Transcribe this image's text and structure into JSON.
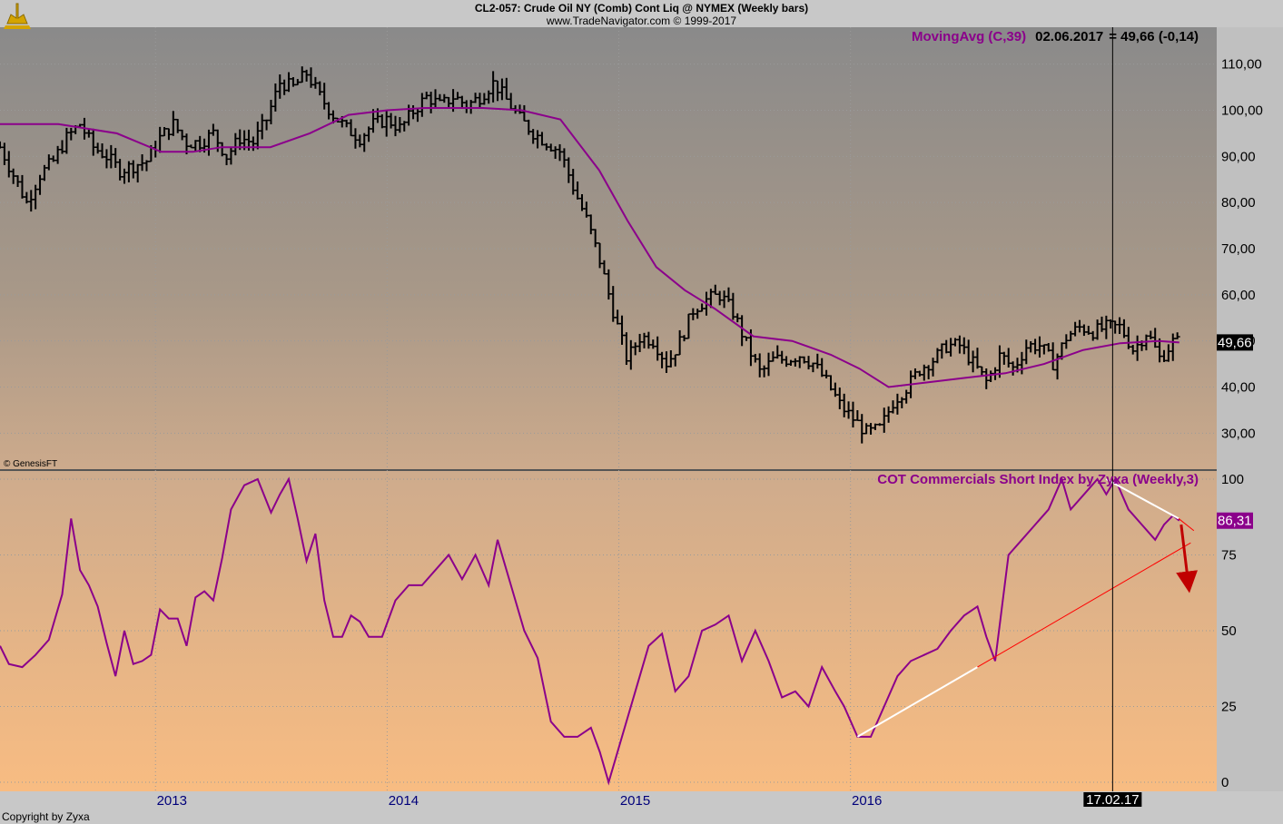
{
  "header": {
    "title": "CL2-057:  Crude Oil NY (Comb) Cont Liq @ NYMEX  (Weekly bars)",
    "subtitle": "www.TradeNavigator.com © 1999-2017"
  },
  "footer": {
    "copyright": "Copyright by Zyxa"
  },
  "colors": {
    "price_bars": "#000000",
    "moving_avg": "#8b008b",
    "cot": "#8b008b",
    "trend_white": "#ffffff",
    "trend_red": "#ff0000",
    "arrow": "#c00000"
  },
  "chart_data": [
    {
      "type": "ohlc",
      "panel": "price",
      "legend": {
        "name": "MovingAvg (C,39)",
        "date": "02.06.2017",
        "value_text": "= 49,66 (-0,14)"
      },
      "watermark": "© GenesisFT",
      "last_value_label": "49,66",
      "ylim": [
        22,
        118
      ],
      "y_ticks": [
        "110,00",
        "100,00",
        "90,00",
        "80,00",
        "70,00",
        "60,00",
        "50,00",
        "40,00",
        "30,00"
      ],
      "y_tick_values": [
        110,
        100,
        90,
        80,
        70,
        60,
        50,
        40,
        30
      ],
      "x_range": [
        "2012-05-01",
        "2017-07-31"
      ],
      "x_ticks": [
        {
          "date": "2013-01-01",
          "label": "2013"
        },
        {
          "date": "2014-01-01",
          "label": "2014"
        },
        {
          "date": "2015-01-01",
          "label": "2015"
        },
        {
          "date": "2016-01-01",
          "label": "2016"
        }
      ],
      "cursor": {
        "date": "2017-02-17",
        "label": "17.02.17"
      },
      "price_close": [
        [
          "2012-05-01",
          92
        ],
        [
          "2012-05-22",
          86
        ],
        [
          "2012-06-12",
          80
        ],
        [
          "2012-07-03",
          86
        ],
        [
          "2012-07-24",
          89
        ],
        [
          "2012-08-14",
          94
        ],
        [
          "2012-09-04",
          97
        ],
        [
          "2012-09-25",
          92
        ],
        [
          "2012-10-16",
          90
        ],
        [
          "2012-11-06",
          87
        ],
        [
          "2012-11-27",
          88
        ],
        [
          "2012-12-18",
          89
        ],
        [
          "2013-01-08",
          94
        ],
        [
          "2013-01-29",
          97
        ],
        [
          "2013-02-19",
          93
        ],
        [
          "2013-03-12",
          93
        ],
        [
          "2013-04-02",
          95
        ],
        [
          "2013-04-23",
          90
        ],
        [
          "2013-05-14",
          94
        ],
        [
          "2013-06-04",
          93
        ],
        [
          "2013-06-25",
          98
        ],
        [
          "2013-07-16",
          106
        ],
        [
          "2013-08-06",
          105
        ],
        [
          "2013-08-27",
          108
        ],
        [
          "2013-09-17",
          103
        ],
        [
          "2013-10-08",
          99
        ],
        [
          "2013-10-29",
          96
        ],
        [
          "2013-11-19",
          94
        ],
        [
          "2013-12-10",
          97
        ],
        [
          "2014-01-01",
          98
        ],
        [
          "2014-01-22",
          96
        ],
        [
          "2014-02-12",
          100
        ],
        [
          "2014-03-05",
          103
        ],
        [
          "2014-03-26",
          101
        ],
        [
          "2014-04-16",
          103
        ],
        [
          "2014-05-07",
          101
        ],
        [
          "2014-05-28",
          103
        ],
        [
          "2014-06-18",
          106
        ],
        [
          "2014-07-09",
          102
        ],
        [
          "2014-07-30",
          98
        ],
        [
          "2014-08-20",
          95
        ],
        [
          "2014-09-10",
          93
        ],
        [
          "2014-10-01",
          91
        ],
        [
          "2014-10-22",
          83
        ],
        [
          "2014-11-12",
          76
        ],
        [
          "2014-12-03",
          67
        ],
        [
          "2014-12-24",
          56
        ],
        [
          "2015-01-14",
          46
        ],
        [
          "2015-02-04",
          51
        ],
        [
          "2015-02-25",
          50
        ],
        [
          "2015-03-18",
          45
        ],
        [
          "2015-04-08",
          50
        ],
        [
          "2015-04-29",
          57
        ],
        [
          "2015-05-20",
          59
        ],
        [
          "2015-06-10",
          60
        ],
        [
          "2015-07-01",
          56
        ],
        [
          "2015-07-22",
          49
        ],
        [
          "2015-08-12",
          43
        ],
        [
          "2015-09-02",
          46
        ],
        [
          "2015-09-23",
          46
        ],
        [
          "2015-10-14",
          47
        ],
        [
          "2015-11-04",
          45
        ],
        [
          "2015-11-25",
          41
        ],
        [
          "2015-12-16",
          36
        ],
        [
          "2016-01-06",
          33
        ],
        [
          "2016-01-27",
          30
        ],
        [
          "2016-02-17",
          31
        ],
        [
          "2016-03-09",
          37
        ],
        [
          "2016-03-30",
          40
        ],
        [
          "2016-04-20",
          44
        ],
        [
          "2016-05-11",
          46
        ],
        [
          "2016-06-01",
          49
        ],
        [
          "2016-06-22",
          49
        ],
        [
          "2016-07-13",
          45
        ],
        [
          "2016-08-03",
          41
        ],
        [
          "2016-08-24",
          47
        ],
        [
          "2016-09-14",
          44
        ],
        [
          "2016-10-05",
          49
        ],
        [
          "2016-10-26",
          49
        ],
        [
          "2016-11-16",
          45
        ],
        [
          "2016-12-07",
          51
        ],
        [
          "2016-12-28",
          53
        ],
        [
          "2017-01-18",
          52
        ],
        [
          "2017-02-08",
          53
        ],
        [
          "2017-03-01",
          53
        ],
        [
          "2017-03-22",
          48
        ],
        [
          "2017-04-12",
          52
        ],
        [
          "2017-05-03",
          46
        ],
        [
          "2017-05-24",
          50
        ],
        [
          "2017-06-02",
          49.66
        ]
      ],
      "moving_avg": [
        [
          "2012-05-01",
          97
        ],
        [
          "2012-08-01",
          97
        ],
        [
          "2012-11-01",
          95
        ],
        [
          "2013-01-10",
          91
        ],
        [
          "2013-03-01",
          91
        ],
        [
          "2013-04-15",
          92
        ],
        [
          "2013-07-01",
          92
        ],
        [
          "2013-09-01",
          95
        ],
        [
          "2013-11-01",
          99
        ],
        [
          "2014-01-01",
          100
        ],
        [
          "2014-03-01",
          100.5
        ],
        [
          "2014-06-01",
          100.5
        ],
        [
          "2014-08-01",
          100
        ],
        [
          "2014-10-01",
          98
        ],
        [
          "2014-12-01",
          87
        ],
        [
          "2015-01-15",
          76
        ],
        [
          "2015-03-01",
          66
        ],
        [
          "2015-04-15",
          61
        ],
        [
          "2015-06-01",
          57
        ],
        [
          "2015-08-01",
          51
        ],
        [
          "2015-10-01",
          50
        ],
        [
          "2015-12-01",
          47
        ],
        [
          "2016-01-15",
          44
        ],
        [
          "2016-03-01",
          40
        ],
        [
          "2016-05-01",
          41
        ],
        [
          "2016-07-01",
          42
        ],
        [
          "2016-09-01",
          43
        ],
        [
          "2016-11-01",
          45
        ],
        [
          "2017-01-01",
          48
        ],
        [
          "2017-03-01",
          49.5
        ],
        [
          "2017-05-01",
          50
        ],
        [
          "2017-06-02",
          49.66
        ]
      ]
    },
    {
      "type": "line",
      "panel": "indicator",
      "legend": {
        "name": "COT Commercials Short Index by Zyxa (Weekly,3)"
      },
      "last_value_label": "86,31",
      "ylim": [
        -3,
        103
      ],
      "y_ticks": [
        "100",
        "75",
        "50",
        "25",
        "0"
      ],
      "y_tick_values": [
        100,
        75,
        50,
        25,
        0
      ],
      "x": [
        "2012-05-01",
        "2012-05-15",
        "2012-06-05",
        "2012-06-26",
        "2012-07-17",
        "2012-08-07",
        "2012-08-21",
        "2012-09-04",
        "2012-09-18",
        "2012-10-02",
        "2012-10-16",
        "2012-10-30",
        "2012-11-13",
        "2012-11-27",
        "2012-12-11",
        "2012-12-25",
        "2013-01-08",
        "2013-01-22",
        "2013-02-05",
        "2013-02-19",
        "2013-03-05",
        "2013-03-19",
        "2013-04-02",
        "2013-04-16",
        "2013-04-30",
        "2013-05-21",
        "2013-06-11",
        "2013-07-02",
        "2013-07-16",
        "2013-07-30",
        "2013-08-13",
        "2013-08-27",
        "2013-09-10",
        "2013-09-24",
        "2013-10-08",
        "2013-10-22",
        "2013-11-05",
        "2013-11-19",
        "2013-12-03",
        "2013-12-24",
        "2014-01-14",
        "2014-02-04",
        "2014-02-25",
        "2014-03-18",
        "2014-04-08",
        "2014-04-29",
        "2014-05-20",
        "2014-06-10",
        "2014-06-24",
        "2014-07-15",
        "2014-08-05",
        "2014-08-26",
        "2014-09-16",
        "2014-10-07",
        "2014-10-28",
        "2014-11-18",
        "2014-12-02",
        "2014-12-16",
        "2015-01-06",
        "2015-01-27",
        "2015-02-17",
        "2015-03-10",
        "2015-03-31",
        "2015-04-21",
        "2015-05-12",
        "2015-06-02",
        "2015-06-23",
        "2015-07-14",
        "2015-08-04",
        "2015-08-25",
        "2015-09-15",
        "2015-10-06",
        "2015-10-27",
        "2015-11-17",
        "2015-12-08",
        "2015-12-22",
        "2016-01-12",
        "2016-02-02",
        "2016-02-23",
        "2016-03-15",
        "2016-04-05",
        "2016-04-26",
        "2016-05-17",
        "2016-06-07",
        "2016-06-28",
        "2016-07-19",
        "2016-08-02",
        "2016-08-16",
        "2016-09-06",
        "2016-09-27",
        "2016-10-18",
        "2016-11-08",
        "2016-11-29",
        "2016-12-13",
        "2017-01-03",
        "2017-01-24",
        "2017-02-07",
        "2017-02-21",
        "2017-03-14",
        "2017-04-04",
        "2017-04-25",
        "2017-05-09",
        "2017-05-23",
        "2017-06-02"
      ],
      "values": [
        45,
        39,
        38,
        42,
        47,
        62,
        87,
        70,
        65,
        58,
        46,
        35,
        50,
        39,
        40,
        42,
        57,
        54,
        54,
        45,
        61,
        63,
        60,
        74,
        90,
        98,
        100,
        89,
        95,
        100,
        87,
        73,
        82,
        60,
        48,
        48,
        55,
        53,
        48,
        48,
        60,
        65,
        65,
        70,
        75,
        67,
        75,
        65,
        80,
        65,
        50,
        41,
        20,
        15,
        15,
        18,
        10,
        0,
        15,
        30,
        45,
        49,
        30,
        35,
        50,
        52,
        55,
        40,
        50,
        40,
        28,
        30,
        25,
        38,
        30,
        25,
        15,
        15,
        25,
        35,
        40,
        42,
        44,
        50,
        55,
        58,
        48,
        40,
        75,
        80,
        85,
        90,
        100,
        90,
        95,
        100,
        95,
        100,
        90,
        85,
        80,
        85,
        88,
        86.31
      ]
    }
  ]
}
